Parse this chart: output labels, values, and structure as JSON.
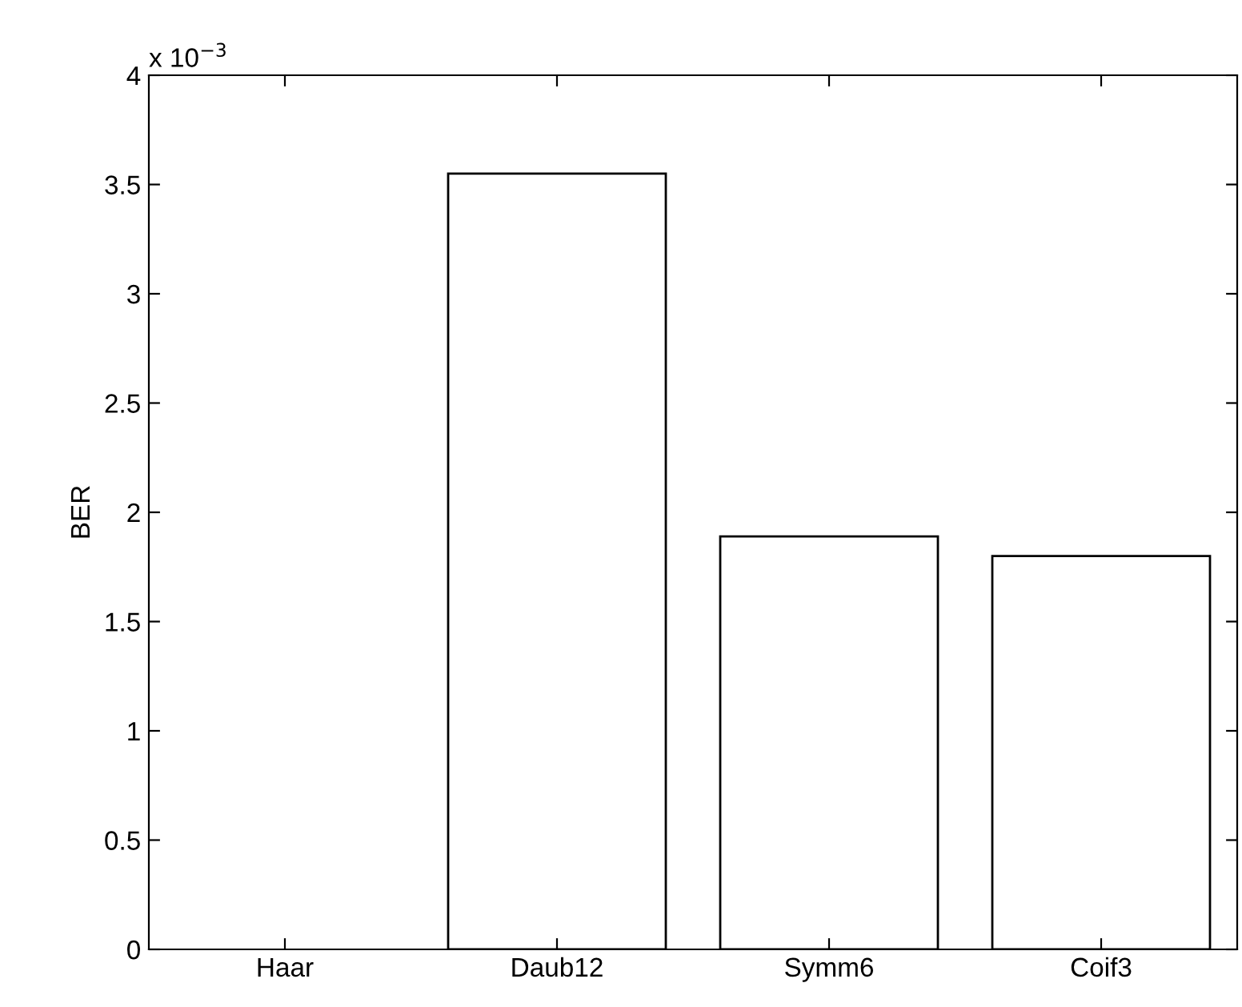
{
  "chart_data": {
    "type": "bar",
    "ylabel": "BER",
    "categories": [
      "Haar",
      "Daub12",
      "Symm6",
      "Coif3"
    ],
    "values": [
      0,
      3.55,
      1.89,
      1.8
    ],
    "color": "#ffffff",
    "ylim": [
      0,
      4
    ],
    "yticks": [
      0,
      0.5,
      1,
      1.5,
      2,
      2.5,
      3,
      3.5,
      4
    ],
    "grid": false,
    "annotations": [
      "x 10$^{−3}$"
    ]
  }
}
